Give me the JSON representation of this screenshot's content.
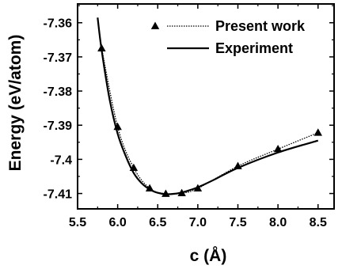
{
  "chart_data": {
    "type": "line",
    "xlabel": "c (Å)",
    "ylabel": "Energy (eV/atom)",
    "xlim": [
      5.5,
      8.7
    ],
    "ylim": [
      -7.4145,
      -7.3545
    ],
    "x_ticks": [
      5.5,
      6.0,
      6.5,
      7.0,
      7.5,
      8.0,
      8.5
    ],
    "x_tick_labels": [
      "5.5",
      "6.0",
      "6.5",
      "7.0",
      "7.5",
      "8.0",
      "8.5"
    ],
    "y_ticks": [
      -7.36,
      -7.37,
      -7.38,
      -7.39,
      -7.4,
      -7.41
    ],
    "y_tick_labels": [
      "-7.36",
      "-7.37",
      "-7.38",
      "-7.39",
      "-7.4",
      "-7.41"
    ],
    "legend_position": "top-right",
    "grid": false,
    "series": [
      {
        "name": "Present work",
        "style": "dotted-with-triangles",
        "color": "#000000",
        "x": [
          5.8,
          6.0,
          6.2,
          6.4,
          6.6,
          6.8,
          7.0,
          7.5,
          8.0,
          8.5
        ],
        "y": [
          -7.3675,
          -7.3905,
          -7.4025,
          -7.4085,
          -7.4101,
          -7.4099,
          -7.4085,
          -7.402,
          -7.397,
          -7.3922
        ]
      },
      {
        "name": "Experiment",
        "style": "solid",
        "color": "#000000",
        "x": [
          5.75,
          5.8,
          5.9,
          6.0,
          6.1,
          6.2,
          6.3,
          6.4,
          6.5,
          6.6,
          6.7,
          6.8,
          6.9,
          7.0,
          7.2,
          7.5,
          8.0,
          8.5
        ],
        "y": [
          -7.3585,
          -7.368,
          -7.3825,
          -7.3925,
          -7.399,
          -7.404,
          -7.407,
          -7.4088,
          -7.4098,
          -7.4102,
          -7.4101,
          -7.4097,
          -7.409,
          -7.4082,
          -7.406,
          -7.4025,
          -7.398,
          -7.3945
        ]
      }
    ]
  }
}
